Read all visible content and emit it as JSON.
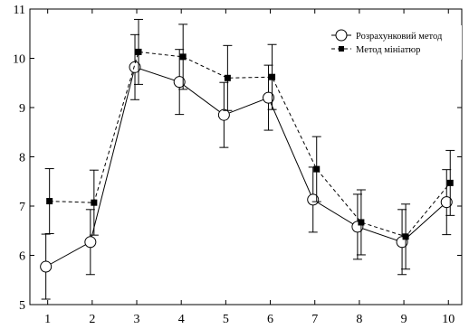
{
  "chart_data": {
    "type": "line",
    "title": "",
    "xlabel": "",
    "ylabel": "",
    "x": [
      1,
      2,
      3,
      4,
      5,
      6,
      7,
      8,
      9,
      10
    ],
    "xlim": [
      0.6,
      10.3
    ],
    "ylim": [
      5,
      11
    ],
    "x_ticks": [
      "1",
      "2",
      "3",
      "4",
      "5",
      "6",
      "7",
      "8",
      "9",
      "10"
    ],
    "y_ticks": [
      "5",
      "6",
      "7",
      "8",
      "9",
      "10",
      "11"
    ],
    "grid": false,
    "legend_position": "top-right",
    "series": [
      {
        "name": "Розрахунковий метод",
        "style": "solid",
        "marker": "open-circle",
        "color": "#000000",
        "values": [
          5.77,
          6.27,
          9.82,
          9.52,
          8.85,
          9.2,
          7.13,
          6.58,
          6.27,
          7.08
        ],
        "error": [
          0.66,
          0.66,
          0.66,
          0.66,
          0.66,
          0.66,
          0.66,
          0.66,
          0.66,
          0.66
        ]
      },
      {
        "name": "Метод мініатюр",
        "style": "dashed",
        "marker": "filled-square",
        "color": "#000000",
        "values": [
          7.1,
          7.07,
          10.13,
          10.03,
          9.6,
          9.62,
          7.75,
          6.67,
          6.38,
          7.47
        ],
        "error": [
          0.66,
          0.66,
          0.66,
          0.66,
          0.66,
          0.66,
          0.66,
          0.66,
          0.66,
          0.66
        ]
      }
    ]
  }
}
